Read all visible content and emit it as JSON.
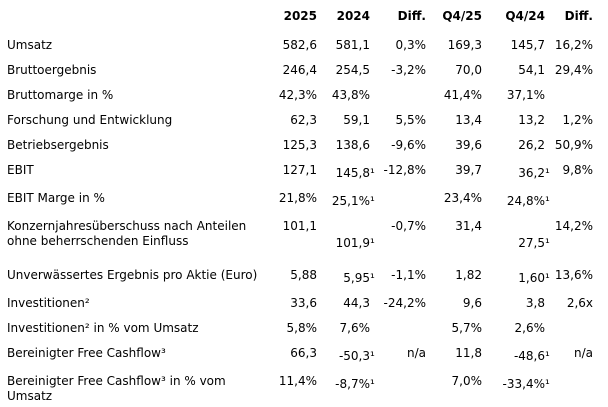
{
  "colors": {
    "text": "#000000",
    "background": "#ffffff"
  },
  "table": {
    "name": "financial-results-table",
    "columns": [
      "",
      "2025",
      "2024",
      "Diff.",
      "Q4/25",
      "Q4/24",
      "Diff."
    ],
    "rows": [
      {
        "label": "Umsatz",
        "values": [
          "582,6",
          "581,1",
          "0,3%",
          "169,3",
          "145,7",
          "16,2%"
        ]
      },
      {
        "label": "Bruttoergebnis",
        "values": [
          "246,4",
          "254,5",
          "-3,2%",
          "70,0",
          "54,1",
          "29,4%"
        ]
      },
      {
        "label": "Bruttomarge in %",
        "values": [
          "42,3%",
          "43,8%",
          "",
          "41,4%",
          "37,1%",
          ""
        ]
      },
      {
        "label": "Forschung und Entwicklung",
        "values": [
          "62,3",
          "59,1",
          "5,5%",
          "13,4",
          "13,2",
          "1,2%"
        ]
      },
      {
        "label": "Betriebsergebnis",
        "values": [
          "125,3",
          "138,6",
          "-9,6%",
          "39,6",
          "26,2",
          "50,9%"
        ]
      },
      {
        "label": "EBIT",
        "values": [
          "127,1",
          "145,8¹",
          "-12,8%",
          "39,7",
          "36,2¹",
          "9,8%"
        ]
      },
      {
        "label": "EBIT Marge in %",
        "values": [
          "21,8%",
          "25,1%¹",
          "",
          "23,4%",
          "24,8%¹",
          ""
        ]
      },
      {
        "label": "Konzernjahresüberschuss nach Anteilen ohne beherrschenden Einfluss",
        "values": [
          "101,1",
          "101,9¹",
          "-0,7%",
          "31,4",
          "27,5¹",
          "14,2%"
        ],
        "footnote_values_on_second_line": true
      },
      {
        "label": "Unverwässertes Ergebnis pro Aktie (Euro)",
        "values": [
          "5,88",
          "5,95¹",
          "-1,1%",
          "1,82",
          "1,60¹",
          "13,6%"
        ]
      },
      {
        "label": "Investitionen²",
        "values": [
          "33,6",
          "44,3",
          "-24,2%",
          "9,6",
          "3,8",
          "2,6x"
        ]
      },
      {
        "label": "Investitionen² in % vom Umsatz",
        "values": [
          "5,8%",
          "7,6%",
          "",
          "5,7%",
          "2,6%",
          ""
        ]
      },
      {
        "label": "Bereinigter Free Cashflow³",
        "values": [
          "66,3",
          "-50,3¹",
          "n/a",
          "11,8",
          "-48,6¹",
          "n/a"
        ]
      },
      {
        "label": "Bereinigter Free Cashflow³ in % vom Umsatz",
        "values": [
          "11,4%",
          "-8,7%¹",
          "",
          "7,0%",
          "-33,4%¹",
          ""
        ]
      }
    ]
  }
}
